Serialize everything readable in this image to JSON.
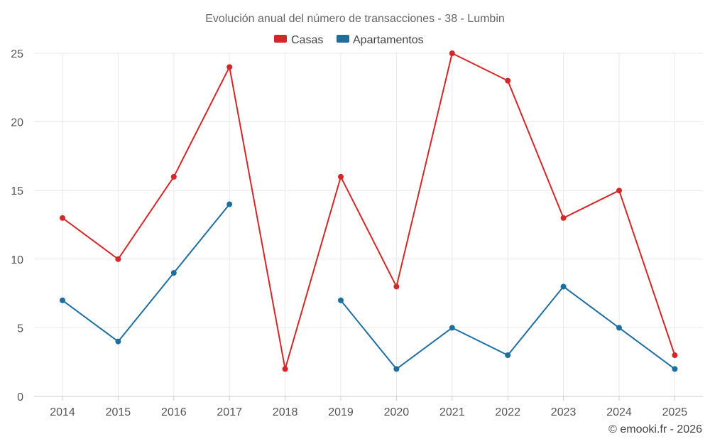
{
  "chart_data": {
    "type": "line",
    "title": "Evolución anual del número de transacciones - 38 - Lumbin",
    "categories": [
      "2014",
      "2015",
      "2016",
      "2017",
      "2018",
      "2019",
      "2020",
      "2021",
      "2022",
      "2023",
      "2024",
      "2025"
    ],
    "series": [
      {
        "name": "Casas",
        "color": "#d62728",
        "values": [
          13,
          10,
          16,
          24,
          2,
          16,
          8,
          25,
          23,
          13,
          15,
          3
        ]
      },
      {
        "name": "Apartamentos",
        "color": "#1f6ea0",
        "values": [
          7,
          4,
          9,
          14,
          null,
          7,
          2,
          5,
          3,
          8,
          5,
          2
        ]
      }
    ],
    "ylim": [
      0,
      25
    ],
    "yticks": [
      0,
      5,
      10,
      15,
      20,
      25
    ],
    "xlabel": "",
    "ylabel": "",
    "grid": true,
    "legend": "top-center"
  },
  "credit": "© emooki.fr - 2026"
}
